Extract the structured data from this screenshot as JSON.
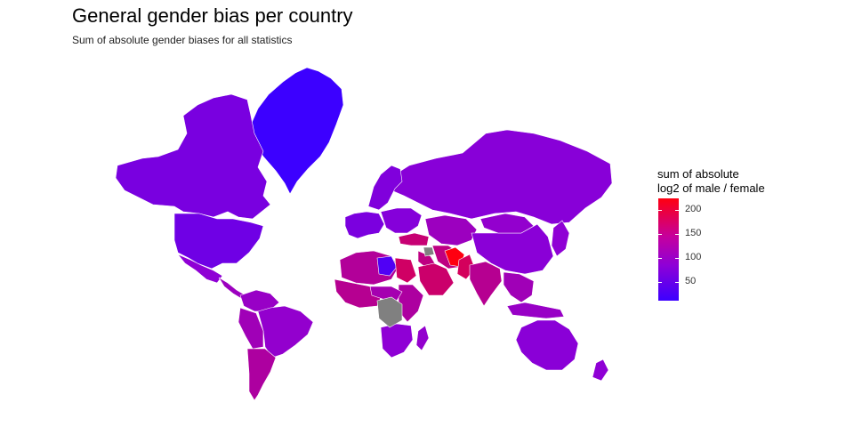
{
  "title": "General gender bias per country",
  "subtitle": "Sum of absolute gender biases for all statistics",
  "legend": {
    "title_line1": "sum of absolute",
    "title_line2": "log2 of male / female",
    "ticks": [
      "200",
      "150",
      "100",
      "50"
    ]
  },
  "colors": {
    "low": "#3c00ff",
    "mid": "#9000d4",
    "high": "#ff0010",
    "missing": "#808080",
    "border": "#ffffff"
  },
  "chart_data": {
    "type": "choropleth",
    "value_range": [
      10,
      225
    ],
    "legend_ticks": [
      50,
      100,
      150,
      200
    ],
    "regions": [
      {
        "name": "Greenland",
        "value": 10
      },
      {
        "name": "Canada",
        "value": 72
      },
      {
        "name": "United States",
        "value": 62
      },
      {
        "name": "Mexico",
        "value": 95
      },
      {
        "name": "Central America",
        "value": 110
      },
      {
        "name": "Colombia / Venezuela",
        "value": 105
      },
      {
        "name": "Brazil",
        "value": 100
      },
      {
        "name": "Peru / Bolivia",
        "value": 115
      },
      {
        "name": "Argentina / Chile",
        "value": 130
      },
      {
        "name": "Russia",
        "value": 88
      },
      {
        "name": "Scandinavia",
        "value": 80
      },
      {
        "name": "Western Europe",
        "value": 75
      },
      {
        "name": "Eastern Europe",
        "value": 85
      },
      {
        "name": "Turkey",
        "value": 160
      },
      {
        "name": "Middle East",
        "value": 150
      },
      {
        "name": "Saudi Arabia",
        "value": 165
      },
      {
        "name": "Iran",
        "value": 150
      },
      {
        "name": "Afghanistan",
        "value": 225
      },
      {
        "name": "Pakistan",
        "value": 175
      },
      {
        "name": "India",
        "value": 140
      },
      {
        "name": "Central Asia",
        "value": 110
      },
      {
        "name": "China",
        "value": 90
      },
      {
        "name": "Mongolia",
        "value": 100
      },
      {
        "name": "Southeast Asia",
        "value": 115
      },
      {
        "name": "Indonesia",
        "value": 105
      },
      {
        "name": "Japan / Korea",
        "value": 95
      },
      {
        "name": "North Africa",
        "value": 135
      },
      {
        "name": "Libya",
        "value": 30
      },
      {
        "name": "Egypt",
        "value": 170
      },
      {
        "name": "West Africa",
        "value": 140
      },
      {
        "name": "East Africa",
        "value": 130
      },
      {
        "name": "Central Africa",
        "value": 120
      },
      {
        "name": "Southern Africa",
        "value": 95
      },
      {
        "name": "Madagascar",
        "value": 100
      },
      {
        "name": "Australia",
        "value": 90
      },
      {
        "name": "New Zealand",
        "value": 95
      },
      {
        "name": "Syria",
        "value": null
      },
      {
        "name": "DR Congo",
        "value": null
      }
    ]
  }
}
